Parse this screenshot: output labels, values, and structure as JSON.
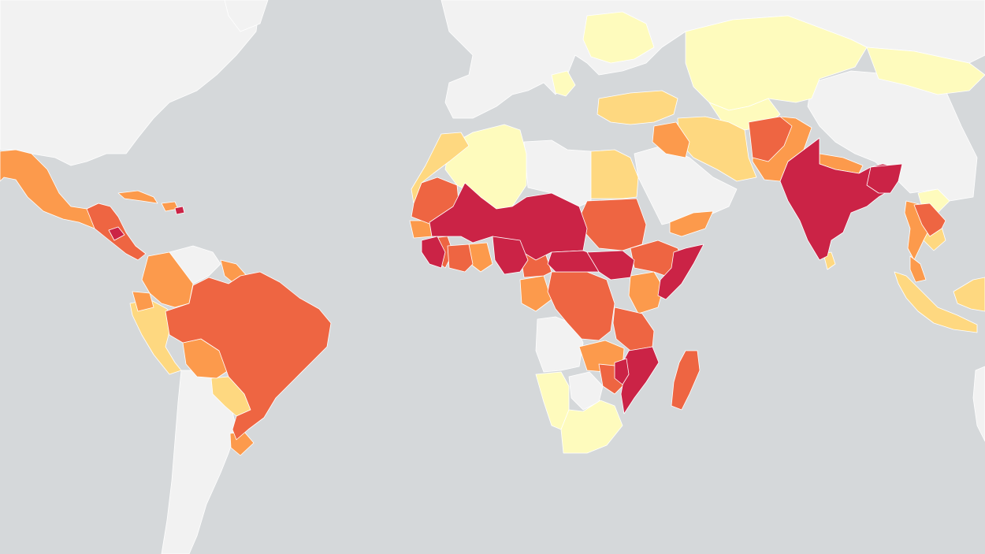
{
  "map": {
    "projection": "web-mercator",
    "basemap": "light-grey",
    "ocean_color": "#d5d8da",
    "no_data_color": "#f2f2f2",
    "border_color": "#ffffff"
  },
  "legend": {
    "visible": false,
    "scale": [
      {
        "class": 0,
        "color": "#f2f2f2",
        "meaning": "no data"
      },
      {
        "class": 1,
        "color": "#fefbbd"
      },
      {
        "class": 2,
        "color": "#fed880"
      },
      {
        "class": 3,
        "color": "#fc9a4c"
      },
      {
        "class": 4,
        "color": "#ee6542"
      },
      {
        "class": 5,
        "color": "#cb2346"
      }
    ]
  }
}
